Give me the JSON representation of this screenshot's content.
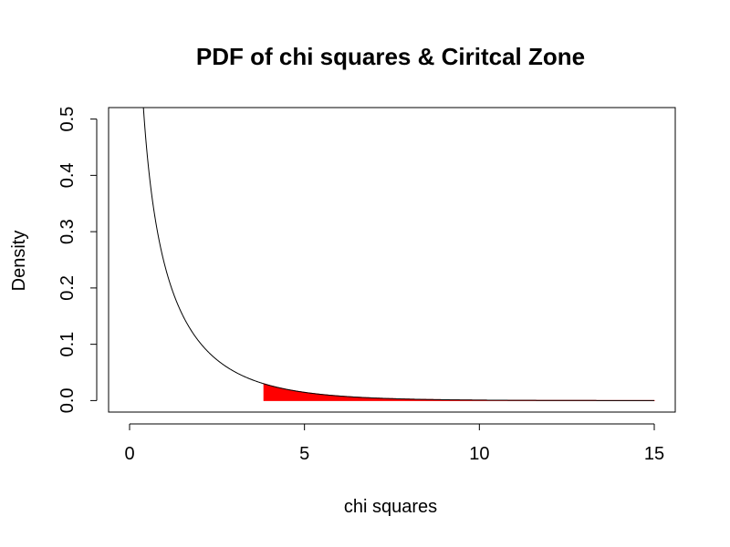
{
  "chart_data": {
    "type": "line",
    "title": "PDF of chi squares & Ciritcal Zone",
    "xlabel": "chi squares",
    "ylabel": "Density",
    "xlim": [
      -0.6,
      15.6
    ],
    "ylim": [
      -0.0204,
      0.5204
    ],
    "x_ticks": [
      0,
      5,
      10,
      15
    ],
    "x_tick_labels": [
      "0",
      "5",
      "10",
      "15"
    ],
    "y_ticks": [
      0.0,
      0.1,
      0.2,
      0.3,
      0.4,
      0.5
    ],
    "y_tick_labels": [
      "0.0",
      "0.1",
      "0.2",
      "0.3",
      "0.4",
      "0.5"
    ],
    "grid": false,
    "series": [
      {
        "distribution": "chi-square",
        "degrees_of_freedom": 1,
        "x_range": [
          0,
          15
        ],
        "color": "#000000",
        "points": [
          [
            0.4,
            0.5399
          ],
          [
            0.5,
            0.4394
          ],
          [
            0.75,
            0.3151
          ],
          [
            1,
            0.242
          ],
          [
            1.5,
            0.1539
          ],
          [
            2,
            0.1038
          ],
          [
            2.5,
            0.0716
          ],
          [
            3,
            0.0514
          ],
          [
            3.5,
            0.037
          ],
          [
            3.84,
            0.0298
          ],
          [
            4,
            0.027
          ],
          [
            5,
            0.0146
          ],
          [
            6,
            0.0081
          ],
          [
            7,
            0.0045
          ],
          [
            8,
            0.0026
          ],
          [
            9,
            0.0015
          ],
          [
            10,
            0.0009
          ],
          [
            12,
            0.0003
          ],
          [
            15,
            0.0001
          ]
        ]
      },
      {
        "critical_zone_start": 3.84,
        "x_range": [
          3.84,
          15
        ],
        "color": "#ff0000"
      }
    ]
  }
}
